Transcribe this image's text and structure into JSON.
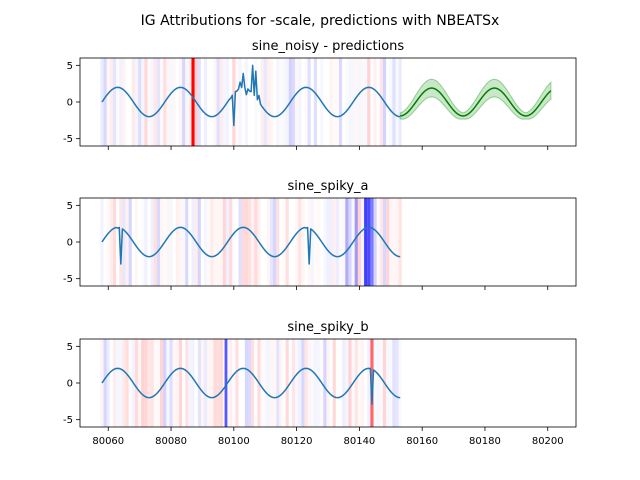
{
  "figure_title": "IG Attributions for -scale, predictions with NBEATSx",
  "colors": {
    "series": "#1f77b4",
    "prediction": "#008000",
    "band": "#2ca02c",
    "positive_attr": "#ff0000",
    "negative_attr": "#0000ff"
  },
  "chart_data": [
    {
      "type": "line",
      "title": "sine_noisy - predictions",
      "xlim": [
        80051,
        80209
      ],
      "ylim": [
        -6,
        6
      ],
      "x_ticks": [
        80060,
        80080,
        80100,
        80120,
        80140,
        80160,
        80180,
        80200
      ],
      "y_ticks": [
        5,
        0,
        -5
      ],
      "x_tick_labels_shown": false,
      "x_start": 80058,
      "x_end": 80153,
      "sine_period": 20,
      "sine_amplitude": 2,
      "anomalies": [
        {
          "x": 80099,
          "y": 0.5
        },
        {
          "x": 80100,
          "y": -3.2
        },
        {
          "x": 80101,
          "y": 1.5
        },
        {
          "x": 80102,
          "y": 2.7
        },
        {
          "x": 80103,
          "y": 3.9
        },
        {
          "x": 80104,
          "y": 1.0
        },
        {
          "x": 80105,
          "y": 1.5
        },
        {
          "x": 80106,
          "y": 5.0
        },
        {
          "x": 80107,
          "y": 4.2
        },
        {
          "x": 80108,
          "y": 0.9
        }
      ],
      "prediction": {
        "name": "",
        "x_start": 80153,
        "x_end": 80201,
        "band_width": [
          0.4,
          1.2
        ]
      },
      "attributions": [
        {
          "x": 80087,
          "value": 1.0,
          "width": 1.0
        }
      ],
      "attribution_seed": 11
    },
    {
      "type": "line",
      "title": "sine_spiky_a",
      "xlim": [
        80051,
        80209
      ],
      "ylim": [
        -6,
        6
      ],
      "x_ticks": [
        80060,
        80080,
        80100,
        80120,
        80140,
        80160,
        80180,
        80200
      ],
      "y_ticks": [
        5,
        0,
        -5
      ],
      "x_tick_labels_shown": false,
      "x_start": 80058,
      "x_end": 80153,
      "sine_period": 20,
      "sine_amplitude": 2,
      "anomalies": [
        {
          "x": 80063,
          "y": 1.9
        },
        {
          "x": 80064,
          "y": -3.0
        },
        {
          "x": 80123,
          "y": 1.9
        },
        {
          "x": 80124,
          "y": -3.0
        }
      ],
      "attributions": [
        {
          "x": 80142,
          "value": -0.75,
          "width": 1.0
        },
        {
          "x": 80143,
          "value": -0.7,
          "width": 1.0
        },
        {
          "x": 80144,
          "value": -0.5,
          "width": 1.0
        },
        {
          "x": 80139,
          "value": -0.35,
          "width": 1.0
        },
        {
          "x": 80136,
          "value": -0.3,
          "width": 1.0
        }
      ],
      "attribution_seed": 23
    },
    {
      "type": "line",
      "title": "sine_spiky_b",
      "xlim": [
        80051,
        80209
      ],
      "ylim": [
        -6,
        6
      ],
      "x_ticks": [
        80060,
        80080,
        80100,
        80120,
        80140,
        80160,
        80180,
        80200
      ],
      "y_ticks": [
        5,
        0,
        -5
      ],
      "x_tick_labels_shown": true,
      "x_start": 80058,
      "x_end": 80153,
      "sine_period": 20,
      "sine_amplitude": 2,
      "anomalies": [
        {
          "x": 80144,
          "y": -2.9
        }
      ],
      "attributions": [
        {
          "x": 80097.5,
          "value": -0.65,
          "width": 0.9
        },
        {
          "x": 80144,
          "value": 0.6,
          "width": 1.0
        }
      ],
      "attribution_seed": 37
    }
  ]
}
